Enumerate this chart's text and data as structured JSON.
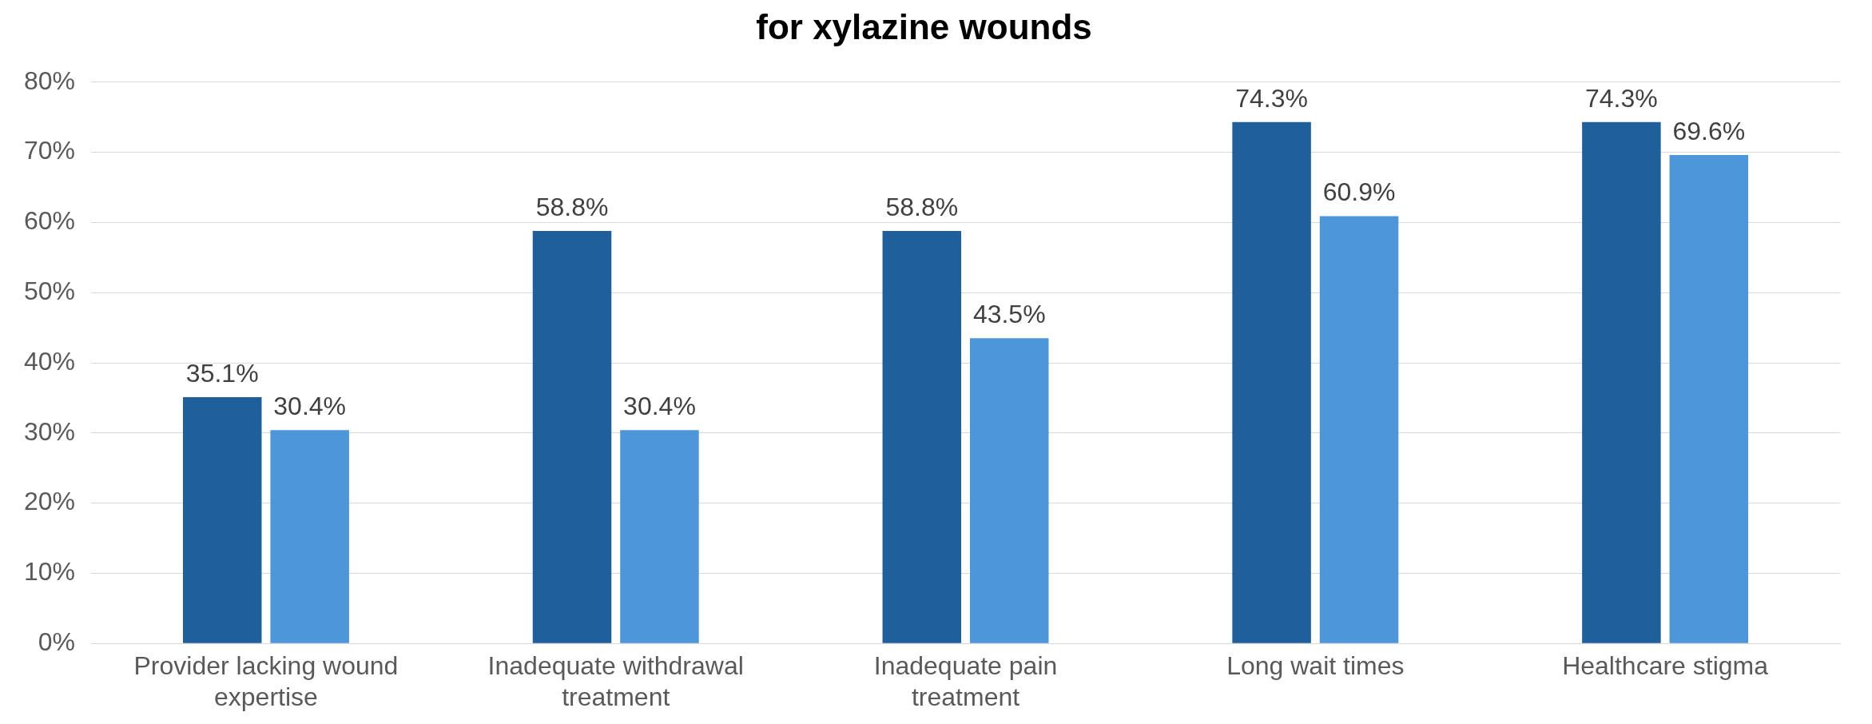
{
  "chart_data": {
    "type": "bar",
    "title": "for xylazine wounds",
    "categories": [
      "Provider lacking wound expertise",
      "Inadequate withdrawal treatment",
      "Inadequate pain treatment",
      "Long wait times",
      "Healthcare stigma"
    ],
    "series": [
      {
        "color": "#1f5f9b",
        "values": [
          35.1,
          58.8,
          58.8,
          74.3,
          74.3
        ],
        "value_labels": [
          "35.1%",
          "58.8%",
          "58.8%",
          "74.3%",
          "74.3%"
        ]
      },
      {
        "color": "#4d96d9",
        "values": [
          30.4,
          30.4,
          43.5,
          60.9,
          69.6
        ],
        "value_labels": [
          "30.4%",
          "30.4%",
          "43.5%",
          "60.9%",
          "69.6%"
        ]
      }
    ],
    "ylim": [
      0,
      80
    ],
    "yticks": [
      {
        "value": 0,
        "label": "0%"
      },
      {
        "value": 10,
        "label": "10%"
      },
      {
        "value": 20,
        "label": "20%"
      },
      {
        "value": 30,
        "label": "30%"
      },
      {
        "value": 40,
        "label": "40%"
      },
      {
        "value": 50,
        "label": "50%"
      },
      {
        "value": 60,
        "label": "60%"
      },
      {
        "value": 70,
        "label": "70%"
      },
      {
        "value": 80,
        "label": "80%"
      }
    ],
    "grid": "y",
    "legend": false
  }
}
